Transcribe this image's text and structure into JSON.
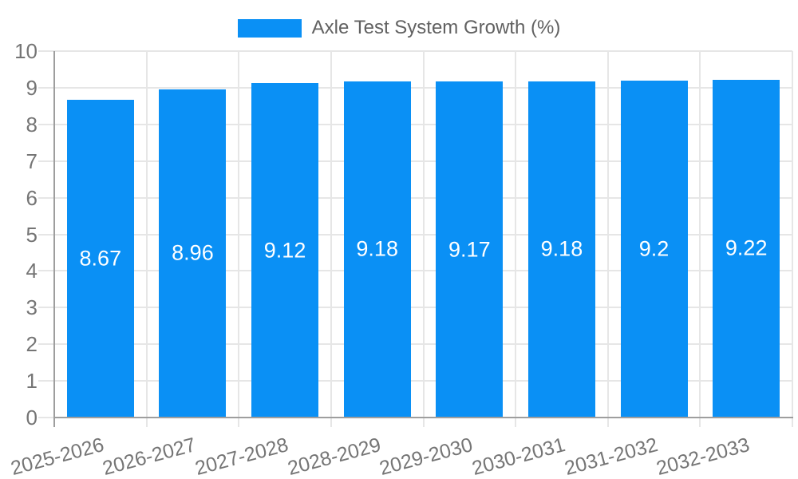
{
  "legend": {
    "label": "Axle Test System Growth (%)"
  },
  "chart_data": {
    "type": "bar",
    "title": "Axle Test System Growth (%)",
    "xlabel": "",
    "ylabel": "",
    "categories": [
      "2025-2026",
      "2026-2027",
      "2027-2028",
      "2028-2029",
      "2029-2030",
      "2030-2031",
      "2031-2032",
      "2032-2033"
    ],
    "series": [
      {
        "name": "Axle Test System Growth (%)",
        "values": [
          8.67,
          8.96,
          9.12,
          9.18,
          9.17,
          9.18,
          9.2,
          9.22
        ],
        "value_labels": [
          "8.67",
          "8.96",
          "9.12",
          "9.18",
          "9.17",
          "9.18",
          "9.2",
          "9.22"
        ]
      }
    ],
    "ylim": [
      0,
      10
    ],
    "ytick_labels": [
      "0",
      "1",
      "2",
      "3",
      "4",
      "5",
      "6",
      "7",
      "8",
      "9",
      "10"
    ],
    "grid": true,
    "legend_position": "top-center",
    "colors": {
      "bar": "#0a90f5",
      "grid": "#e6e6e6",
      "axis": "#9e9e9e",
      "tick_text": "#757575",
      "legend_text": "#616161",
      "value_text": "#ffffff",
      "background": "#ffffff"
    }
  }
}
